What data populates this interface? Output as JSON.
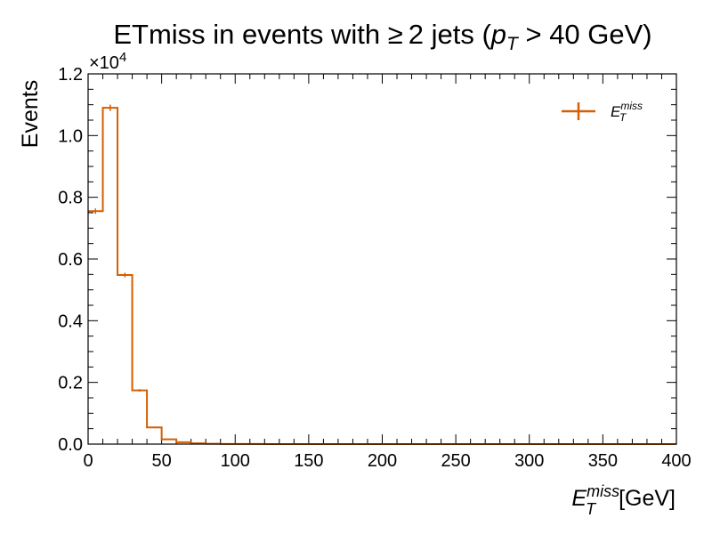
{
  "chart_data": {
    "type": "histogram",
    "title": {
      "prefix": "ETmiss in events with ",
      "geq": "≥",
      "middle": "2 jets (",
      "pt_base": "p",
      "pt_sub": "T",
      "gt": " > ",
      "suffix": "40 GeV)"
    },
    "xlabel": {
      "base": "E",
      "sup": "miss",
      "sub": "T",
      "unit": "[GeV]"
    },
    "ylabel": "Events",
    "y_multiplier": {
      "base": "×10",
      "exp": "4"
    },
    "xlim": [
      0,
      400
    ],
    "ylim": [
      0,
      12000
    ],
    "x_ticks": [
      0,
      50,
      100,
      150,
      200,
      250,
      300,
      350,
      400
    ],
    "x_tick_labels": [
      "0",
      "50",
      "100",
      "150",
      "200",
      "250",
      "300",
      "350",
      "400"
    ],
    "y_ticks": [
      0,
      2000,
      4000,
      6000,
      8000,
      10000,
      12000
    ],
    "y_tick_labels": [
      "0.0",
      "0.2",
      "0.4",
      "0.6",
      "0.8",
      "1.0",
      "1.2"
    ],
    "bin_edges": [
      0,
      10,
      20,
      30,
      40,
      50,
      60,
      70,
      80,
      90,
      100,
      110,
      120,
      130,
      140,
      150,
      160,
      170,
      180,
      190,
      200,
      210,
      220,
      230,
      240,
      250,
      260,
      270,
      280,
      290,
      300,
      310,
      320,
      330,
      340,
      350,
      360,
      370,
      380,
      390,
      400
    ],
    "values": [
      7550,
      10900,
      5480,
      1740,
      540,
      155,
      60,
      25,
      10,
      5,
      3,
      2,
      1,
      1,
      0,
      0,
      0,
      0,
      0,
      0,
      0,
      0,
      0,
      0,
      0,
      0,
      0,
      0,
      0,
      0,
      0,
      0,
      0,
      0,
      0,
      0,
      0,
      0,
      0,
      0
    ],
    "series_color": "#d55e00",
    "legend": {
      "position": "top-right",
      "label_base": "E",
      "label_sup": "miss",
      "label_sub": "T"
    },
    "grid": false
  }
}
